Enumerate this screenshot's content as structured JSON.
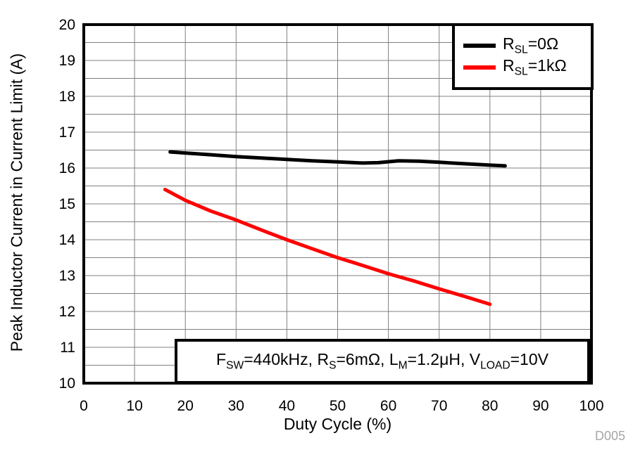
{
  "figure": {
    "watermark": "D005"
  },
  "colors": {
    "grid": "#808080",
    "axis": "#000000",
    "series_black": "#000000",
    "series_red": "#ff0000",
    "watermark": "#a6a6a6",
    "background": "#ffffff"
  },
  "chart_data": {
    "type": "line",
    "title": "",
    "xlabel": "Duty Cycle (%)",
    "ylabel": "Peak Inductor Current in Current Limit (A)",
    "xlim": [
      0,
      100
    ],
    "ylim": [
      10,
      20
    ],
    "x_tick_step": 10,
    "y_tick_step": 1,
    "x_grid_step": 10,
    "y_grid_step": 0.5,
    "grid": true,
    "legend_position": "top-right",
    "x_tick_labels": [
      "0",
      "10",
      "20",
      "30",
      "40",
      "50",
      "60",
      "70",
      "80",
      "90",
      "100"
    ],
    "y_tick_labels": [
      "10",
      "11",
      "12",
      "13",
      "14",
      "15",
      "16",
      "17",
      "18",
      "19",
      "20"
    ],
    "series": [
      {
        "name": "RSL=0Ω",
        "color": "#000000",
        "points": [
          [
            17,
            16.45
          ],
          [
            20,
            16.42
          ],
          [
            25,
            16.37
          ],
          [
            30,
            16.32
          ],
          [
            35,
            16.28
          ],
          [
            40,
            16.24
          ],
          [
            45,
            16.2
          ],
          [
            50,
            16.17
          ],
          [
            55,
            16.14
          ],
          [
            58,
            16.15
          ],
          [
            62,
            16.2
          ],
          [
            66,
            16.19
          ],
          [
            70,
            16.16
          ],
          [
            75,
            16.12
          ],
          [
            80,
            16.08
          ],
          [
            83,
            16.06
          ]
        ]
      },
      {
        "name": "RSL=1kΩ",
        "color": "#ff0000",
        "points": [
          [
            16,
            15.4
          ],
          [
            20,
            15.1
          ],
          [
            25,
            14.8
          ],
          [
            30,
            14.55
          ],
          [
            35,
            14.27
          ],
          [
            40,
            14.0
          ],
          [
            45,
            13.75
          ],
          [
            50,
            13.5
          ],
          [
            55,
            13.28
          ],
          [
            60,
            13.05
          ],
          [
            65,
            12.85
          ],
          [
            70,
            12.63
          ],
          [
            75,
            12.42
          ],
          [
            80,
            12.2
          ]
        ]
      }
    ],
    "annotation_text": "FSW=440kHz, RS=6mΩ, LM=1.2μH, VLOAD=10V"
  },
  "legend": {
    "items": [
      {
        "pre": "R",
        "sub": "SL",
        "post": "=0Ω",
        "color": "#000000"
      },
      {
        "pre": "R",
        "sub": "SL",
        "post": "=1kΩ",
        "color": "#ff0000"
      }
    ]
  },
  "annotation": {
    "parts": [
      {
        "text": "F"
      },
      {
        "text": "SW",
        "sub": true
      },
      {
        "text": "=440kHz, R"
      },
      {
        "text": "S",
        "sub": true
      },
      {
        "text": "=6mΩ, L"
      },
      {
        "text": "M",
        "sub": true
      },
      {
        "text": "=1.2μH, V"
      },
      {
        "text": "LOAD",
        "sub": true
      },
      {
        "text": "=10V"
      }
    ]
  }
}
